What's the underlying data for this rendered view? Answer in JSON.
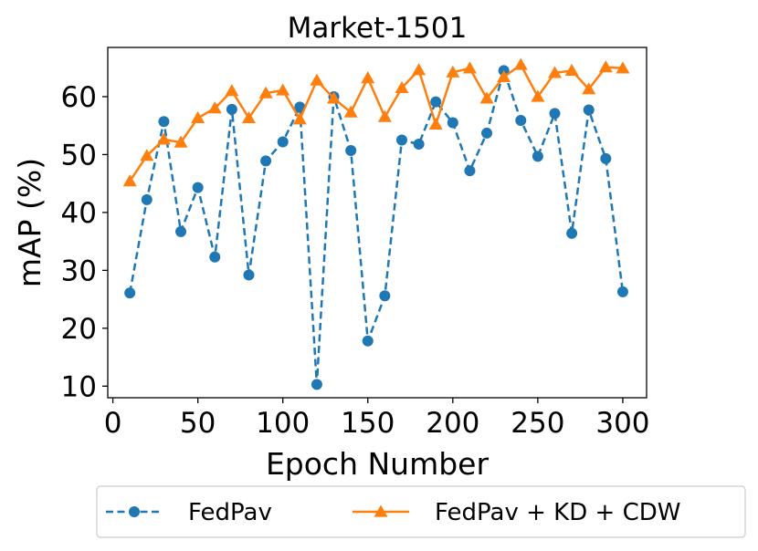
{
  "chart_data": {
    "type": "line",
    "title": "Market-1501",
    "xlabel": "Epoch Number",
    "ylabel": "mAP (%)",
    "xlim": [
      -3,
      314
    ],
    "ylim": [
      8,
      68.5
    ],
    "xticks": [
      0,
      50,
      100,
      150,
      200,
      250,
      300
    ],
    "yticks": [
      10,
      20,
      30,
      40,
      50,
      60
    ],
    "x": [
      10,
      20,
      30,
      40,
      50,
      60,
      70,
      80,
      90,
      100,
      110,
      120,
      130,
      140,
      150,
      160,
      170,
      180,
      190,
      200,
      210,
      220,
      230,
      240,
      250,
      260,
      270,
      280,
      290,
      300
    ],
    "grid": false,
    "legend_position": "bottom-center, below axes",
    "series": [
      {
        "name": "FedPav",
        "color": "#1f77b4",
        "style": "dashed",
        "marker": "circle",
        "values": [
          26.1,
          42.2,
          55.7,
          36.7,
          44.3,
          32.3,
          57.8,
          29.2,
          48.9,
          52.2,
          58.2,
          10.3,
          60.0,
          50.7,
          17.8,
          25.6,
          52.5,
          51.8,
          59.1,
          55.5,
          47.2,
          53.7,
          64.5,
          55.9,
          49.7,
          57.1,
          36.4,
          57.7,
          49.3,
          26.3
        ]
      },
      {
        "name": "FedPav + KD + CDW",
        "color": "#ff7f0e",
        "style": "solid",
        "marker": "triangle",
        "values": [
          45.4,
          49.8,
          52.6,
          52.1,
          56.3,
          58.0,
          61.0,
          56.3,
          60.6,
          61.1,
          56.1,
          62.8,
          59.7,
          57.3,
          63.2,
          56.5,
          61.5,
          64.6,
          55.2,
          64.2,
          64.9,
          59.7,
          63.4,
          65.5,
          60.0,
          64.1,
          64.5,
          61.3,
          65.1,
          64.9
        ]
      }
    ]
  }
}
